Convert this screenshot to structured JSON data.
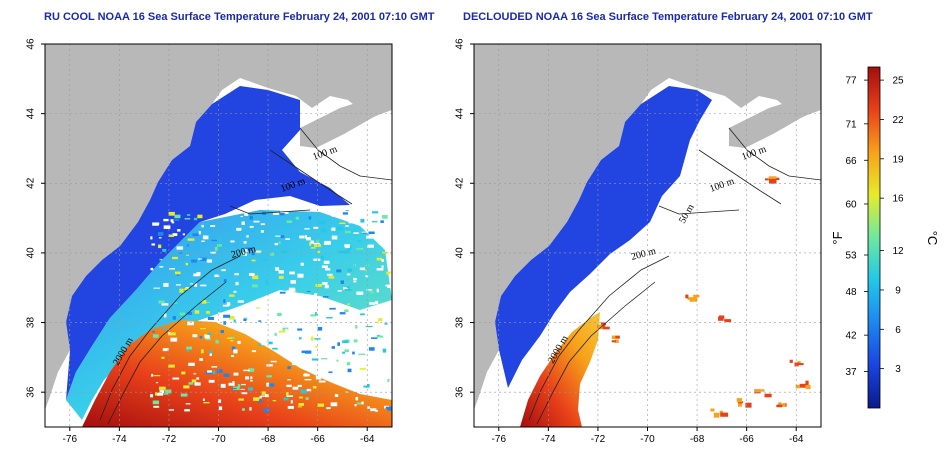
{
  "titles": {
    "left": "RU COOL NOAA 16 Sea Surface Temperature February 24, 2001 07:10 GMT",
    "right": "DECLOUDED NOAA 16 Sea Surface Temperature February 24, 2001 07:10 GMT"
  },
  "map": {
    "lon_range": [
      -77,
      -63
    ],
    "lat_range": [
      35,
      46
    ],
    "lon_ticks": [
      -76,
      -74,
      -72,
      -70,
      -68,
      -66,
      -64
    ],
    "lat_ticks": [
      36,
      38,
      40,
      42,
      44,
      46
    ],
    "lon_labels": [
      "-76",
      "-74",
      "-72",
      "-70",
      "-68",
      "-66",
      "-64"
    ],
    "lat_labels": [
      "36",
      "38",
      "40",
      "42",
      "44",
      "46"
    ],
    "contour_labels": [
      "100 m",
      "100 m",
      "50 m",
      "200 m",
      "2000 m"
    ]
  },
  "colorbar": {
    "celsius_ticks": [
      3,
      6,
      9,
      12,
      16,
      19,
      22,
      25
    ],
    "celsius_labels": [
      "3",
      "6",
      "9",
      "12",
      "16",
      "19",
      "22",
      "25"
    ],
    "fahrenheit_ticks": [
      37,
      42,
      48,
      53,
      60,
      66,
      71,
      77
    ],
    "fahrenheit_labels": [
      "37",
      "42",
      "48",
      "53",
      "60",
      "66",
      "71",
      "77"
    ],
    "celsius_unit": "°C",
    "fahrenheit_unit": "°F",
    "range_c": [
      0,
      26
    ],
    "colors": [
      "#0a1a8c",
      "#1a44e0",
      "#1d86f0",
      "#22c8e8",
      "#6ee8a0",
      "#e6ec2a",
      "#f7a21a",
      "#e8401a",
      "#a40e0e"
    ]
  },
  "colors": {
    "land": "#b8b8b8",
    "ocean_bg": "#ffffff",
    "cold_shelf": "#2244e0",
    "gulf_stream": "#b81810"
  }
}
